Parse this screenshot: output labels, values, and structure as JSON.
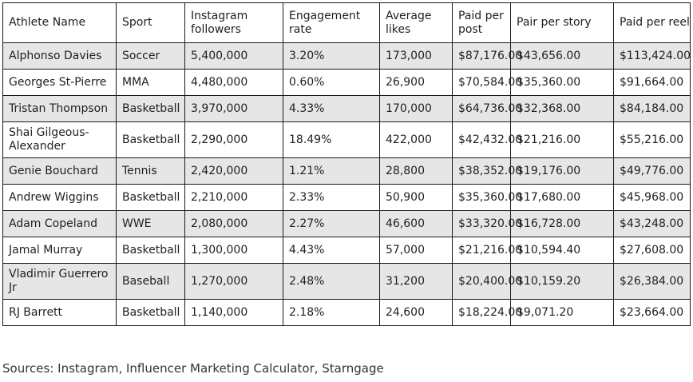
{
  "table": {
    "headers": [
      "Athlete Name",
      "Sport",
      "Instagram followers",
      "Engagement rate",
      "Average likes",
      "Paid per post",
      "Pair per story",
      "Paid per reel"
    ],
    "rows": [
      [
        "Alphonso Davies",
        "Soccer",
        "5,400,000",
        "3.20%",
        "173,000",
        "$87,176.00",
        "$43,656.00",
        "$113,424.00"
      ],
      [
        "Georges St-Pierre",
        "MMA",
        "4,480,000",
        "0.60%",
        "26,900",
        "$70,584.00",
        "$35,360.00",
        "$91,664.00"
      ],
      [
        "Tristan Thompson",
        "Basketball",
        "3,970,000",
        "4.33%",
        "170,000",
        "$64,736.00",
        "$32,368.00",
        "$84,184.00"
      ],
      [
        "Shai Gilgeous-Alexander",
        "Basketball",
        "2,290,000",
        "18.49%",
        "422,000",
        "$42,432.00",
        "$21,216.00",
        "$55,216.00"
      ],
      [
        "Genie Bouchard",
        "Tennis",
        "2,420,000",
        "1.21%",
        "28,800",
        "$38,352.00",
        "$19,176.00",
        "$49,776.00"
      ],
      [
        "Andrew Wiggins",
        "Basketball",
        "2,210,000",
        "2.33%",
        "50,900",
        "$35,360.00",
        "$17,680.00",
        "$45,968.00"
      ],
      [
        "Adam Copeland",
        "WWE",
        "2,080,000",
        "2.27%",
        "46,600",
        "$33,320.00",
        "$16,728.00",
        "$43,248.00"
      ],
      [
        "Jamal Murray",
        "Basketball",
        "1,300,000",
        "4.43%",
        "57,000",
        "$21,216.00",
        "$10,594.40",
        "$27,608.00"
      ],
      [
        "Vladimir Guerrero Jr",
        "Baseball",
        "1,270,000",
        "2.48%",
        "31,200",
        "$20,400.00",
        "$10,159.20",
        "$26,384.00"
      ],
      [
        "RJ Barrett",
        "Basketball",
        "1,140,000",
        "2.18%",
        "24,600",
        "$18,224.00",
        "$9,071.20",
        "$23,664.00"
      ]
    ]
  },
  "sources": "Sources: Instagram, Influencer Marketing Calculator, Starngage"
}
